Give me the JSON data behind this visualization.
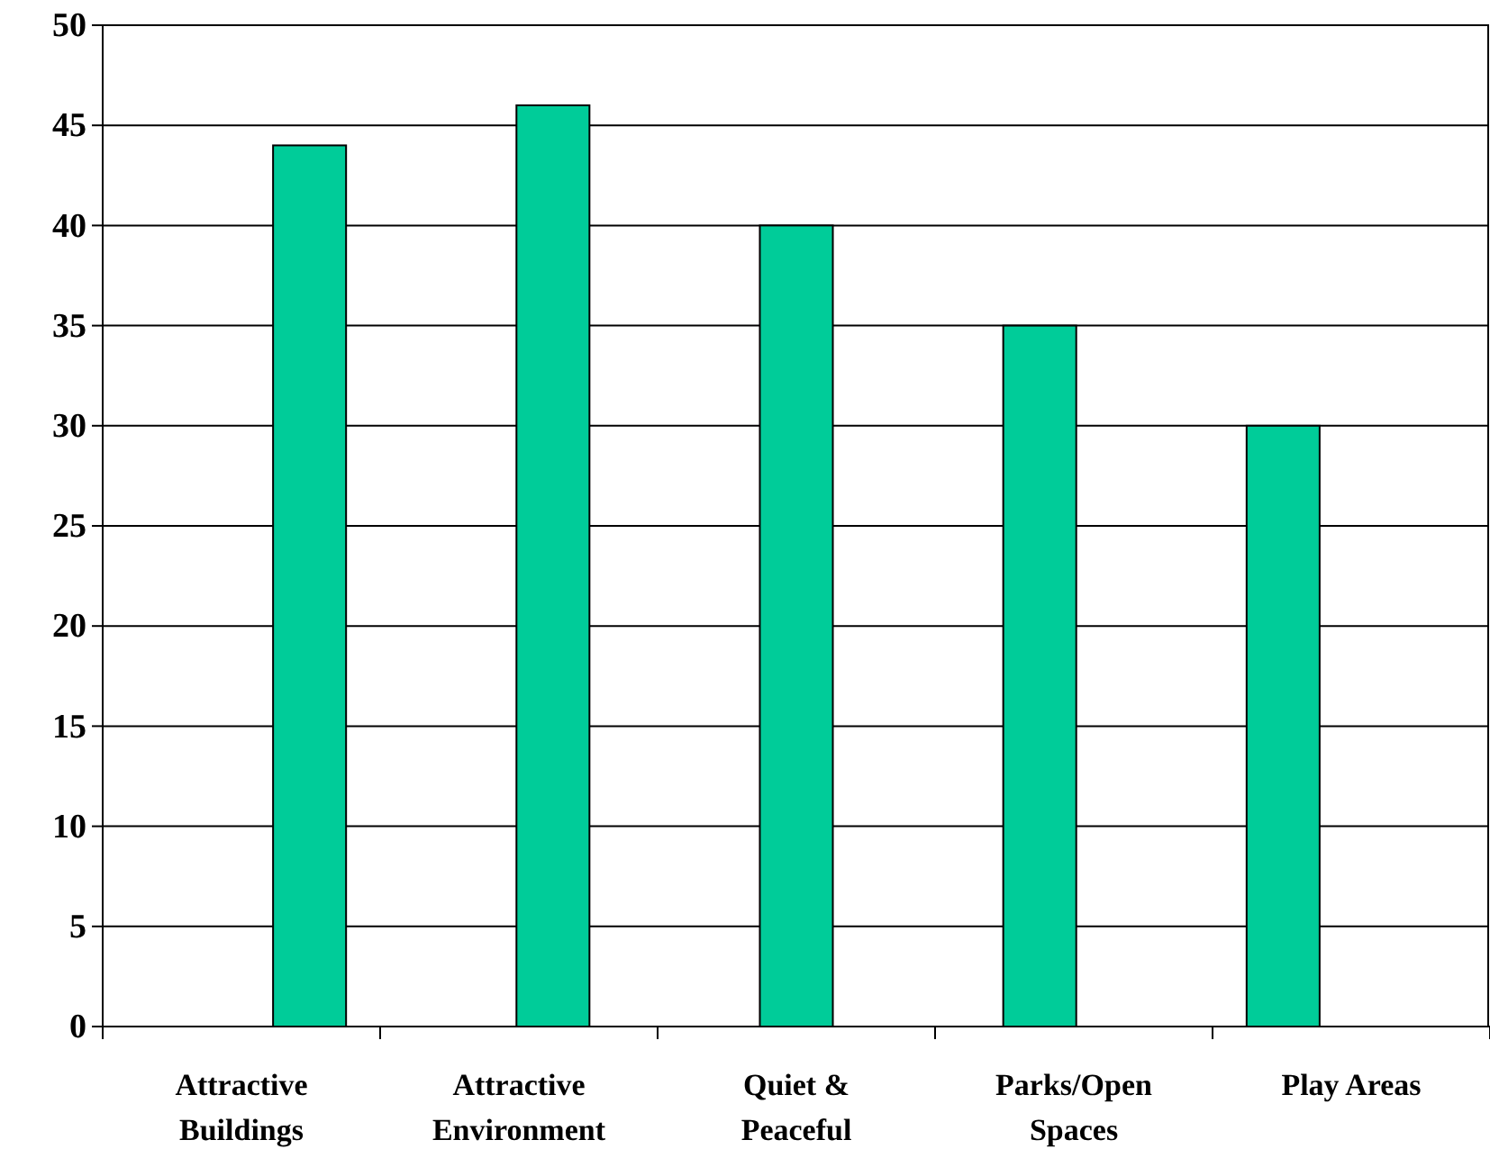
{
  "chart_data": {
    "type": "bar",
    "categories": [
      "Attractive Buildings",
      "Attractive Environment",
      "Quiet & Peaceful",
      "Parks/Open Spaces",
      "Play Areas"
    ],
    "values": [
      44,
      46,
      40,
      35,
      30
    ],
    "color": "#00cc99",
    "ylim": [
      0,
      50
    ],
    "yticks": [
      0,
      5,
      10,
      15,
      20,
      25,
      30,
      35,
      40,
      45,
      50
    ],
    "grid": "y"
  }
}
